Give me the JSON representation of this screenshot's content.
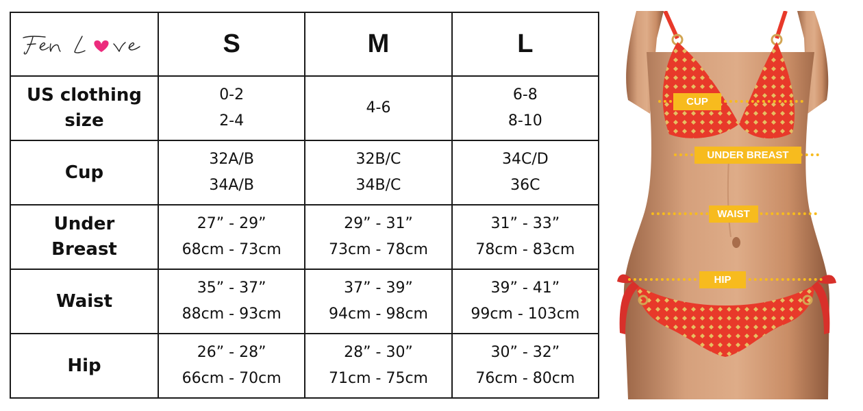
{
  "brand": {
    "name": "Fen Love",
    "heart_color": "#ec2b7d"
  },
  "sizes": [
    "S",
    "M",
    "L"
  ],
  "rows": [
    {
      "label": [
        "US clothing",
        "size"
      ],
      "cells": [
        [
          "0-2",
          "2-4"
        ],
        [
          "4-6"
        ],
        [
          "6-8",
          "8-10"
        ]
      ]
    },
    {
      "label": [
        "Cup"
      ],
      "cells": [
        [
          "32A/B",
          "34A/B"
        ],
        [
          "32B/C",
          "34B/C"
        ],
        [
          "34C/D",
          "36C"
        ]
      ]
    },
    {
      "label": [
        "Under",
        "Breast"
      ],
      "cells": [
        [
          "27” - 29”",
          "68cm - 73cm"
        ],
        [
          "29” - 31”",
          "73cm - 78cm"
        ],
        [
          "31” - 33”",
          "78cm - 83cm"
        ]
      ]
    },
    {
      "label": [
        "Waist"
      ],
      "cells": [
        [
          "35” - 37”",
          "88cm - 93cm"
        ],
        [
          "37” - 39”",
          "94cm - 98cm"
        ],
        [
          "39” - 41”",
          "99cm - 103cm"
        ]
      ]
    },
    {
      "label": [
        "Hip"
      ],
      "cells": [
        [
          "26” - 28”",
          "66cm - 70cm"
        ],
        [
          "28” - 30”",
          "71cm - 75cm"
        ],
        [
          "30” - 32”",
          "76cm - 80cm"
        ]
      ]
    }
  ],
  "measure_labels": {
    "cup": "CUP",
    "under_breast": "UNDER BREAST",
    "waist": "WAIST",
    "hip": "HIP"
  },
  "colors": {
    "marker": "#f7bb1e",
    "swimsuit": "#e8392a",
    "skin": "#c9906a",
    "border": "#1a1a1a"
  }
}
